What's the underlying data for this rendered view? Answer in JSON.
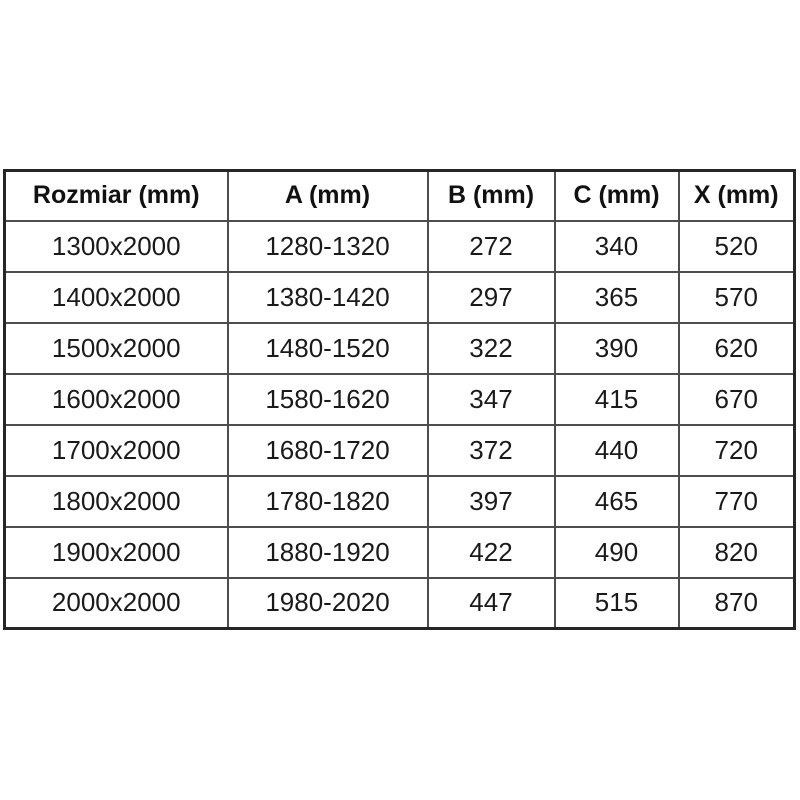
{
  "table": {
    "name": "dimension-specification-table",
    "columns": [
      "Rozmiar (mm)",
      "A (mm)",
      "B (mm)",
      "C (mm)",
      "X (mm)"
    ],
    "rows": [
      [
        "1300x2000",
        "1280-1320",
        "272",
        "340",
        "520"
      ],
      [
        "1400x2000",
        "1380-1420",
        "297",
        "365",
        "570"
      ],
      [
        "1500x2000",
        "1480-1520",
        "322",
        "390",
        "620"
      ],
      [
        "1600x2000",
        "1580-1620",
        "347",
        "415",
        "670"
      ],
      [
        "1700x2000",
        "1680-1720",
        "372",
        "440",
        "720"
      ],
      [
        "1800x2000",
        "1780-1820",
        "397",
        "465",
        "770"
      ],
      [
        "1900x2000",
        "1880-1920",
        "422",
        "490",
        "820"
      ],
      [
        "2000x2000",
        "1980-2020",
        "447",
        "515",
        "870"
      ]
    ],
    "colors": {
      "outer_border": "#262626",
      "inner_border": "#4d4d4d",
      "text": "#1a1a1a",
      "background": "#ffffff"
    }
  }
}
